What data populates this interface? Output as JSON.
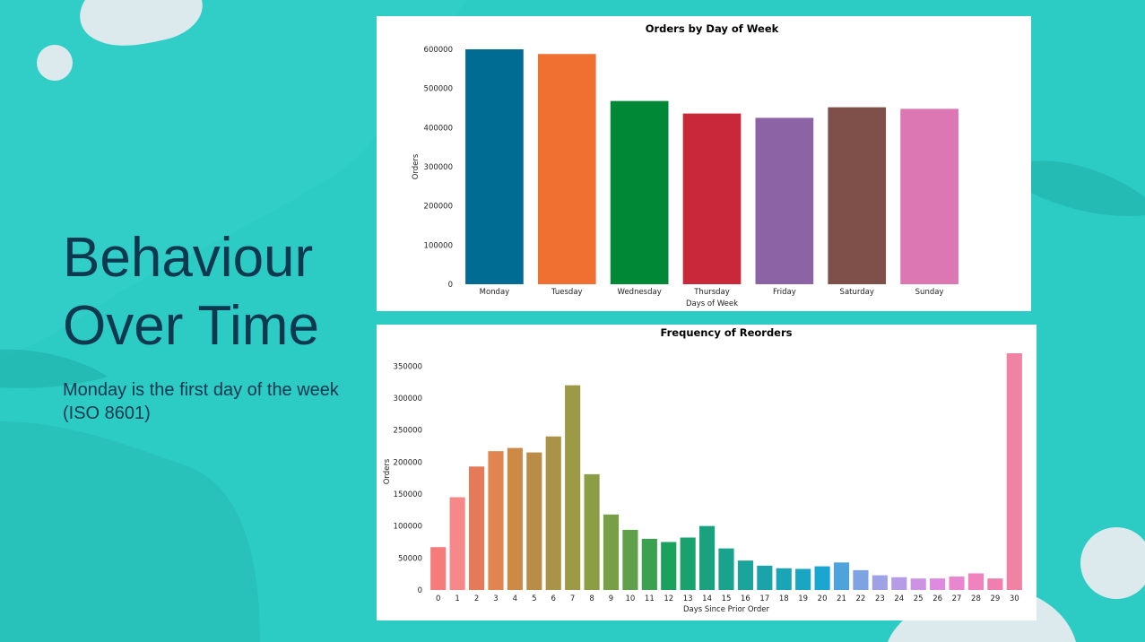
{
  "slide": {
    "title_line1": "Behaviour",
    "title_line2": "Over Time",
    "subtitle": "Monday is the first day of the week (ISO 8601)",
    "colors": {
      "background": "#2ccbc4",
      "text": "#0d3850"
    }
  },
  "chart_data": [
    {
      "type": "bar",
      "title": "Orders by Day of Week",
      "xlabel": "Days of Week",
      "ylabel": "Orders",
      "ylim": [
        0,
        600000
      ],
      "yticks": [
        0,
        100000,
        200000,
        300000,
        400000,
        500000,
        600000
      ],
      "categories": [
        "Monday",
        "Tuesday",
        "Wednesday",
        "Thursday",
        "Friday",
        "Saturday",
        "Sunday"
      ],
      "values": [
        600000,
        588000,
        468000,
        436000,
        425000,
        452000,
        448000
      ],
      "colors": [
        "#006c93",
        "#f07032",
        "#008837",
        "#c9283a",
        "#8c64a5",
        "#7f5049",
        "#dc77b4"
      ],
      "grid": false
    },
    {
      "type": "bar",
      "title": "Frequency of Reorders",
      "xlabel": "Days Since Prior Order",
      "ylabel": "Orders",
      "ylim": [
        0,
        370000
      ],
      "yticks": [
        0,
        50000,
        100000,
        150000,
        200000,
        250000,
        300000,
        350000
      ],
      "categories": [
        "0",
        "1",
        "2",
        "3",
        "4",
        "5",
        "6",
        "7",
        "8",
        "9",
        "10",
        "11",
        "12",
        "13",
        "14",
        "15",
        "16",
        "17",
        "18",
        "19",
        "20",
        "21",
        "22",
        "23",
        "24",
        "25",
        "26",
        "27",
        "28",
        "29",
        "30"
      ],
      "values": [
        67000,
        145000,
        193000,
        217000,
        222000,
        215000,
        240000,
        320000,
        181000,
        118000,
        94000,
        80000,
        75000,
        82000,
        100000,
        65000,
        46000,
        38000,
        34000,
        33000,
        37000,
        43000,
        31000,
        23000,
        20000,
        18000,
        18000,
        21000,
        26000,
        18000,
        370000
      ],
      "colors": [
        "#f67c7c",
        "#f6888a",
        "#e57a59",
        "#e2844f",
        "#cd8a46",
        "#b98d46",
        "#a99346",
        "#9c9a46",
        "#8b9e46",
        "#789e46",
        "#5ea14a",
        "#3aa150",
        "#1aa15e",
        "#1aa26e",
        "#1aa27e",
        "#1aa38c",
        "#1aa49b",
        "#1aa4aa",
        "#1aa4b6",
        "#1aa5c2",
        "#1aa6d2",
        "#4fa3dc",
        "#7ea3e2",
        "#9ea2e4",
        "#b69ce4",
        "#cc93e4",
        "#de8ae0",
        "#e886d0",
        "#f083be",
        "#f07fb0",
        "#f082a4"
      ],
      "grid": false
    }
  ]
}
